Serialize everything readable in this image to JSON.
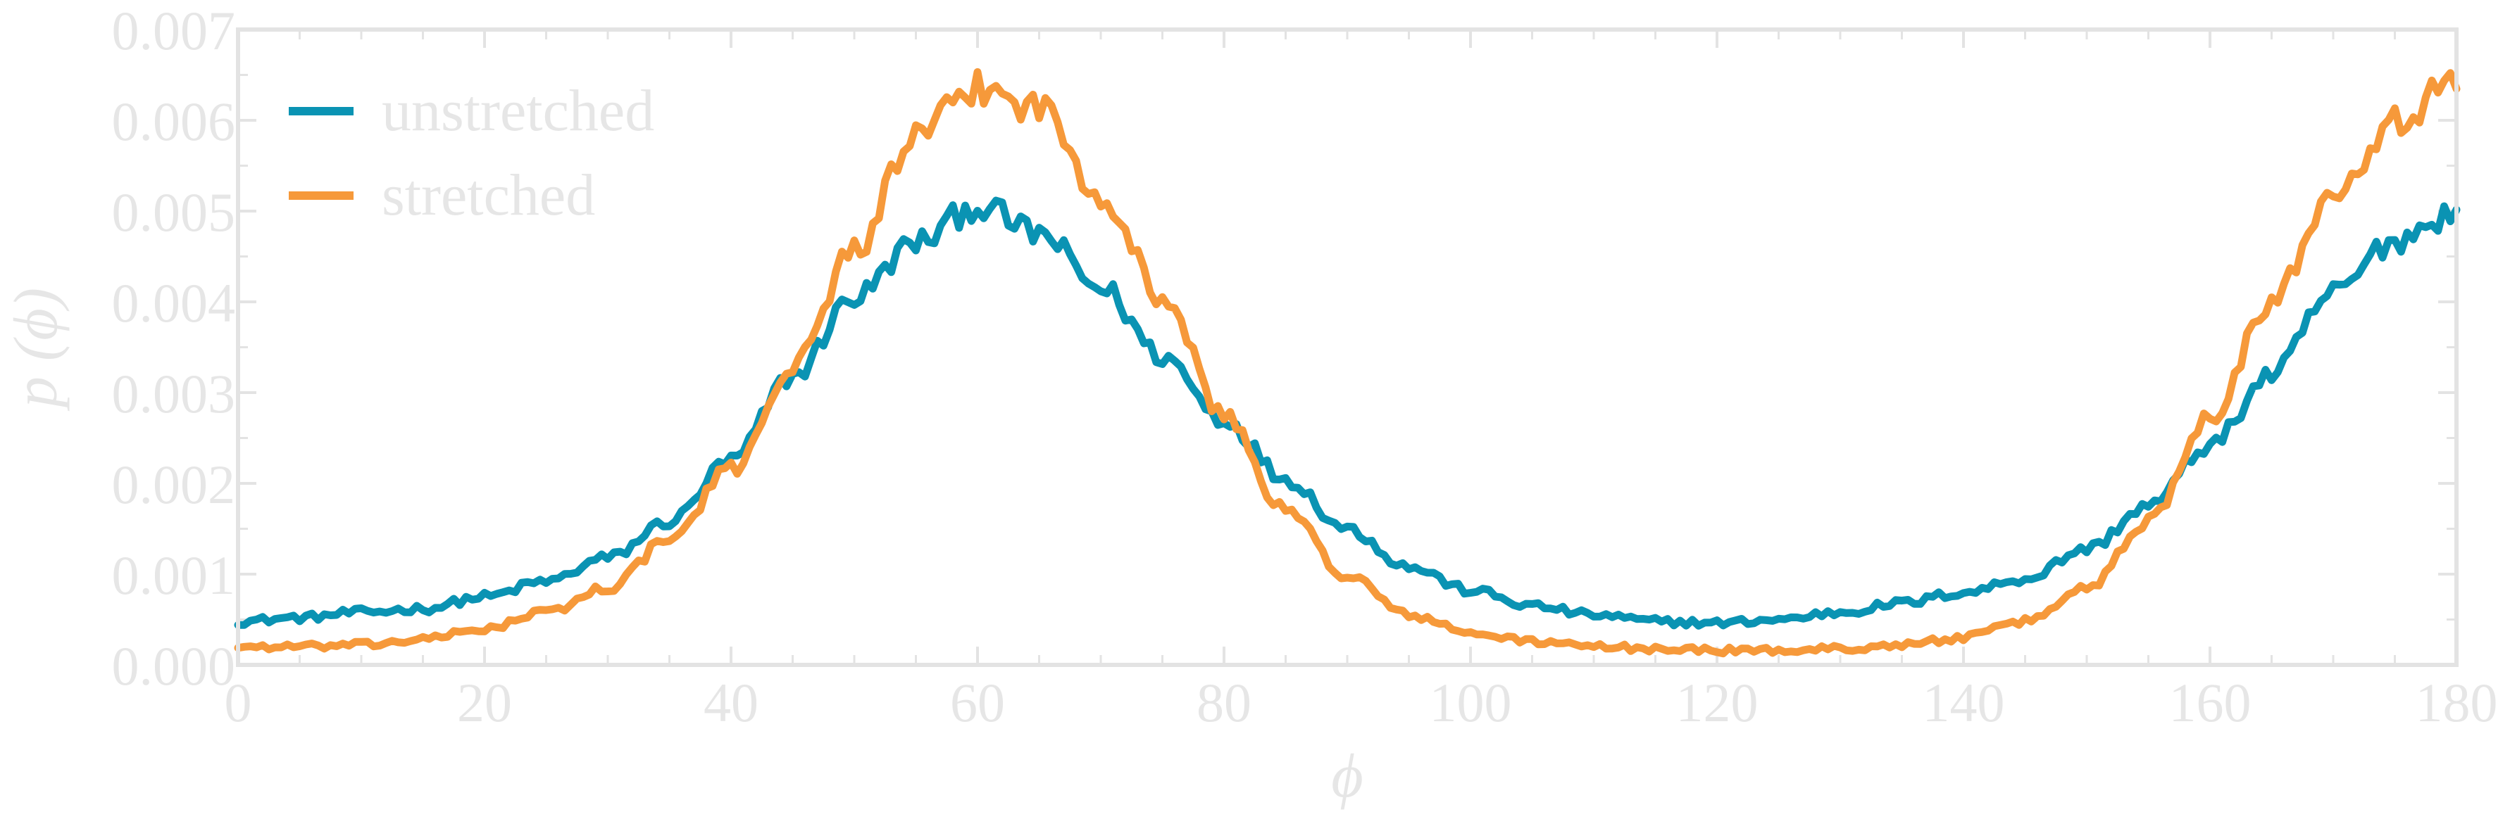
{
  "chart_data": {
    "type": "line",
    "xlabel": "ϕ",
    "ylabel": "p (ϕ)",
    "xlim": [
      0,
      180
    ],
    "ylim": [
      0.0,
      0.007
    ],
    "x_ticks": [
      "0",
      "20",
      "40",
      "60",
      "80",
      "100",
      "120",
      "140",
      "160",
      "180"
    ],
    "y_ticks": [
      "0.000",
      "0.001",
      "0.002",
      "0.003",
      "0.004",
      "0.005",
      "0.006",
      "0.007"
    ],
    "x": [
      0,
      5,
      10,
      15,
      20,
      25,
      30,
      35,
      40,
      45,
      50,
      55,
      60,
      65,
      70,
      75,
      80,
      85,
      90,
      95,
      100,
      105,
      110,
      115,
      120,
      125,
      130,
      135,
      140,
      145,
      150,
      155,
      160,
      165,
      170,
      175,
      180
    ],
    "series": [
      {
        "name": "unstretched",
        "color": "#0a93b3",
        "values": [
          0.00048,
          0.00052,
          0.00058,
          0.00062,
          0.00075,
          0.00092,
          0.00118,
          0.00158,
          0.00225,
          0.00318,
          0.00405,
          0.00465,
          0.00505,
          0.00475,
          0.00415,
          0.0034,
          0.0027,
          0.00205,
          0.0015,
          0.00108,
          0.00082,
          0.00065,
          0.00055,
          0.00048,
          0.00046,
          0.0005,
          0.00058,
          0.00068,
          0.0008,
          0.00095,
          0.00128,
          0.00175,
          0.00242,
          0.0032,
          0.0041,
          0.00468,
          0.005
        ]
      },
      {
        "name": "stretched",
        "color": "#f6993a",
        "values": [
          0.0002,
          0.0002,
          0.00022,
          0.00028,
          0.0004,
          0.00058,
          0.00085,
          0.00138,
          0.00215,
          0.00328,
          0.00458,
          0.0058,
          0.00635,
          0.00615,
          0.0052,
          0.00405,
          0.00275,
          0.0017,
          0.00098,
          0.00055,
          0.00035,
          0.00026,
          0.0002,
          0.00018,
          0.00016,
          0.00016,
          0.00018,
          0.00022,
          0.0003,
          0.00048,
          0.00085,
          0.00158,
          0.00275,
          0.004,
          0.00525,
          0.006,
          0.0064
        ]
      }
    ],
    "legend_position": "top-left",
    "grid": false
  }
}
